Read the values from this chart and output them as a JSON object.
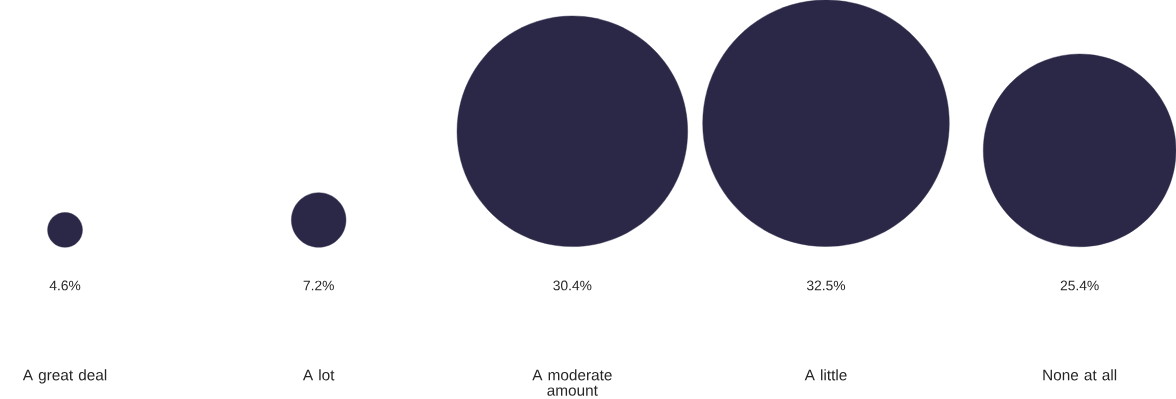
{
  "chart_data": {
    "type": "other",
    "categories": [
      "A great deal",
      "A lot",
      "A moderate amount",
      "A little",
      "None at all"
    ],
    "values": [
      4.6,
      7.2,
      30.4,
      32.5,
      25.4
    ],
    "value_labels": [
      "4.6%",
      "7.2%",
      "30.4%",
      "32.5%",
      "25.4%"
    ],
    "color": "#2b2847"
  }
}
